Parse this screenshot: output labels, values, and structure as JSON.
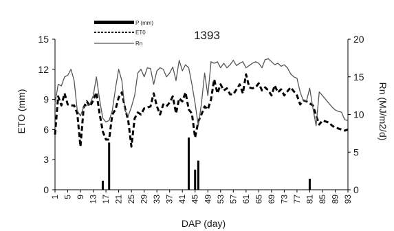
{
  "chart_data": {
    "type": "line",
    "title": "1393",
    "xlabel": "DAP (day)",
    "ylabel_left": "ETO (mm)",
    "ylabel_right": "Rn (MJ/m2/d)",
    "xlim": [
      1,
      93
    ],
    "ylim_left": [
      0,
      15
    ],
    "ylim_right": [
      0,
      20
    ],
    "yticks_left": [
      0,
      3,
      6,
      9,
      12,
      15
    ],
    "yticks_right": [
      0,
      5,
      10,
      15,
      20
    ],
    "xticks": [
      1,
      5,
      9,
      13,
      17,
      21,
      25,
      29,
      33,
      37,
      41,
      45,
      49,
      53,
      57,
      61,
      65,
      69,
      73,
      77,
      81,
      85,
      89,
      93
    ],
    "grid": false,
    "legend_position": "top-left",
    "legend": [
      {
        "label": "P (mm)",
        "style": "bar",
        "color": "#000000"
      },
      {
        "label": "ET0",
        "style": "dashed",
        "color": "#000000"
      },
      {
        "label": "Rn",
        "style": "solid",
        "color": "#555555"
      }
    ],
    "series": [
      {
        "name": "P (mm)",
        "type": "bar",
        "axis": "left",
        "color": "#000000",
        "x": [
          16,
          18,
          43,
          45,
          46,
          81
        ],
        "values": [
          0.9,
          4.7,
          5.2,
          2.0,
          2.9,
          1.1
        ]
      },
      {
        "name": "ET0",
        "type": "line",
        "axis": "left",
        "color": "#000000",
        "dashed": true,
        "x": [
          1,
          2,
          3,
          4,
          5,
          6,
          7,
          8,
          9,
          10,
          11,
          12,
          13,
          14,
          15,
          16,
          17,
          18,
          19,
          20,
          21,
          22,
          23,
          24,
          25,
          26,
          27,
          28,
          29,
          30,
          31,
          32,
          33,
          34,
          35,
          36,
          37,
          38,
          39,
          40,
          41,
          42,
          43,
          44,
          45,
          46,
          47,
          48,
          49,
          50,
          51,
          52,
          53,
          54,
          55,
          56,
          57,
          58,
          59,
          60,
          61,
          62,
          63,
          64,
          65,
          66,
          67,
          68,
          69,
          70,
          71,
          72,
          73,
          74,
          75,
          76,
          77,
          78,
          79,
          80,
          81,
          82,
          83,
          84,
          85,
          86,
          87,
          88,
          89,
          90,
          91,
          92,
          93
        ],
        "values": [
          5.5,
          9.3,
          8.4,
          9.6,
          8.5,
          8.4,
          8.4,
          7.6,
          4.3,
          8.2,
          8.8,
          8.3,
          8.9,
          9.7,
          7.6,
          5.8,
          5.0,
          5.0,
          7.5,
          8.0,
          9.2,
          9.7,
          8.1,
          6.9,
          4.3,
          7.1,
          7.7,
          7.5,
          8.1,
          8.2,
          8.3,
          9.6,
          8.3,
          7.5,
          8.5,
          8.3,
          8.7,
          9.3,
          7.6,
          9.1,
          8.8,
          9.7,
          8.0,
          7.6,
          5.2,
          6.8,
          7.5,
          8.3,
          8.0,
          9.0,
          11.0,
          9.6,
          10.5,
          9.9,
          10.1,
          9.5,
          9.5,
          10.0,
          10.5,
          9.6,
          11.5,
          10.2,
          10.1,
          10.2,
          10.6,
          9.9,
          10.2,
          9.9,
          9.4,
          10.4,
          9.7,
          10.0,
          9.4,
          9.8,
          10.2,
          9.8,
          9.4,
          8.5,
          8.9,
          8.8,
          8.6,
          8.4,
          7.4,
          6.5,
          6.9,
          6.8,
          6.7,
          6.4,
          6.2,
          6.1,
          6.0,
          5.9,
          6.0
        ]
      },
      {
        "name": "Rn",
        "type": "line",
        "axis": "right",
        "color": "#555555",
        "dashed": false,
        "x": [
          1,
          2,
          3,
          4,
          5,
          6,
          7,
          8,
          9,
          10,
          11,
          12,
          13,
          14,
          15,
          16,
          17,
          18,
          19,
          20,
          21,
          22,
          23,
          24,
          25,
          26,
          27,
          28,
          29,
          30,
          31,
          32,
          33,
          34,
          35,
          36,
          37,
          38,
          39,
          40,
          41,
          42,
          43,
          44,
          45,
          46,
          47,
          48,
          49,
          50,
          51,
          52,
          53,
          54,
          55,
          56,
          57,
          58,
          59,
          60,
          61,
          62,
          63,
          64,
          65,
          66,
          67,
          68,
          69,
          70,
          71,
          72,
          73,
          74,
          75,
          76,
          77,
          78,
          79,
          80,
          81,
          82,
          83,
          84,
          85,
          86,
          87,
          88,
          89,
          90,
          91,
          92,
          93
        ],
        "values": [
          11.5,
          14.0,
          13.8,
          15.0,
          15.2,
          16.0,
          14.5,
          10.5,
          9.8,
          11.0,
          11.2,
          11.4,
          12.5,
          15.0,
          12.0,
          9.5,
          9.0,
          9.2,
          10.5,
          13.5,
          16.0,
          14.5,
          10.5,
          9.8,
          11.0,
          12.5,
          15.5,
          16.0,
          15.0,
          16.2,
          16.1,
          14.0,
          15.8,
          16.2,
          16.0,
          15.0,
          15.5,
          16.3,
          14.5,
          17.2,
          15.8,
          16.6,
          16.2,
          14.0,
          11.5,
          8.5,
          11.5,
          15.5,
          12.5,
          17.0,
          16.8,
          17.0,
          16.2,
          16.8,
          16.2,
          16.6,
          17.2,
          16.5,
          16.8,
          17.0,
          16.2,
          16.5,
          16.8,
          17.0,
          16.8,
          16.2,
          17.3,
          17.4,
          17.0,
          16.6,
          16.8,
          16.4,
          16.6,
          16.2,
          15.4,
          15.0,
          14.8,
          13.0,
          11.8,
          11.8,
          13.5,
          10.8,
          8.5,
          13.0,
          12.5,
          12.0,
          11.5,
          11.0,
          10.6,
          10.4,
          10.3,
          9.3,
          9.2
        ]
      }
    ]
  }
}
